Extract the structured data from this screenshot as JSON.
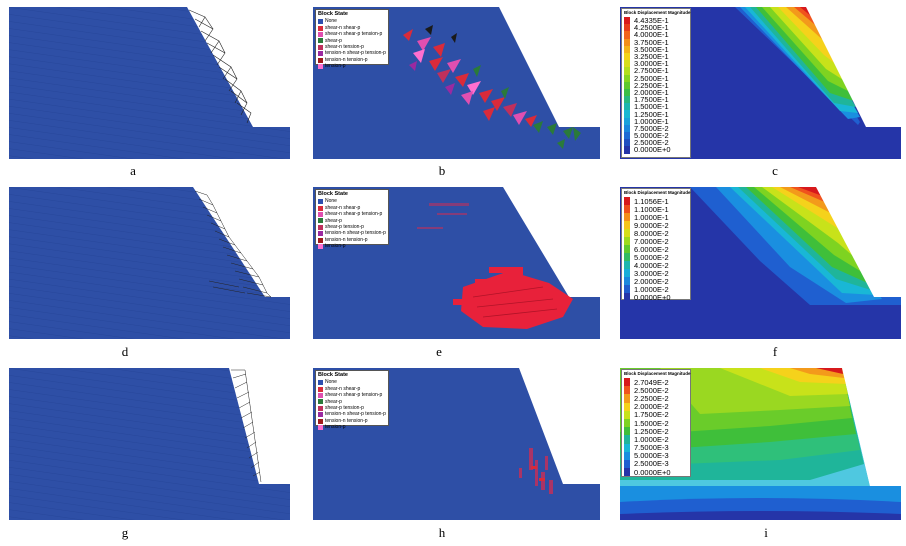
{
  "captions": [
    "a",
    "b",
    "c",
    "d",
    "e",
    "f",
    "g",
    "h",
    "i"
  ],
  "block_state_legends": {
    "b": {
      "title": "Block State",
      "items": [
        {
          "label": "None",
          "color": "#2d4fae"
        },
        {
          "label": "shear-n shear-p",
          "color": "#d92b3a"
        },
        {
          "label": "shear-n shear-p tension-p",
          "color": "#e04fb0"
        },
        {
          "label": "shear-p",
          "color": "#2a7a3a"
        },
        {
          "label": "shear-n tension-p",
          "color": "#c0305c"
        },
        {
          "label": "tension-n shear-p tension-p",
          "color": "#9b2aa0"
        },
        {
          "label": "tension-n tension-p",
          "color": "#a01c1c"
        },
        {
          "label": "tension-p",
          "color": "#ff6fcf"
        }
      ]
    },
    "e": {
      "title": "Block State",
      "items": [
        {
          "label": "None",
          "color": "#2d4fae"
        },
        {
          "label": "shear-n shear-p",
          "color": "#d92b3a"
        },
        {
          "label": "shear-n shear-p tension-p",
          "color": "#e04fb0"
        },
        {
          "label": "shear-p",
          "color": "#2a7a3a"
        },
        {
          "label": "shear-p tension-p",
          "color": "#c0305c"
        },
        {
          "label": "tension-n shear-p tension-p",
          "color": "#9b2aa0"
        },
        {
          "label": "tension-n tension-p",
          "color": "#a01c1c"
        },
        {
          "label": "tension-p",
          "color": "#ff6fcf"
        }
      ]
    },
    "h": {
      "title": "Block State",
      "items": [
        {
          "label": "None",
          "color": "#2d4fae"
        },
        {
          "label": "shear-n shear-p",
          "color": "#d92b3a"
        },
        {
          "label": "shear-n shear-p tension-p",
          "color": "#e04fb0"
        },
        {
          "label": "shear-p",
          "color": "#2a7a3a"
        },
        {
          "label": "shear-p tension-p",
          "color": "#c0305c"
        },
        {
          "label": "tension-n shear-p tension-p",
          "color": "#9b2aa0"
        },
        {
          "label": "tension-n tension-p",
          "color": "#a01c1c"
        },
        {
          "label": "tension-p",
          "color": "#ff6fcf"
        }
      ]
    }
  },
  "displacement_legends": {
    "c": {
      "title": "Block Displacement Magnitude",
      "values": [
        "4.4335E-1",
        "4.2500E-1",
        "4.0000E-1",
        "3.7500E-1",
        "3.5000E-1",
        "3.2500E-1",
        "3.0000E-1",
        "2.7500E-1",
        "2.5000E-1",
        "2.2500E-1",
        "2.0000E-1",
        "1.7500E-1",
        "1.5000E-1",
        "1.2500E-1",
        "1.0000E-1",
        "7.5000E-2",
        "5.0000E-2",
        "2.5000E-2",
        "0.0000E+0"
      ]
    },
    "f": {
      "title": "Block Displacement Magnitude",
      "values": [
        "1.1056E-1",
        "1.1000E-1",
        "1.0000E-1",
        "9.0000E-2",
        "8.0000E-2",
        "7.0000E-2",
        "6.0000E-2",
        "5.0000E-2",
        "4.0000E-2",
        "3.0000E-2",
        "2.0000E-2",
        "1.0000E-2",
        "0.0000E+0"
      ]
    },
    "i": {
      "title": "Block Displacement Magnitude",
      "values": [
        "2.7049E-2",
        "2.5000E-2",
        "2.2500E-2",
        "2.0000E-2",
        "1.7500E-2",
        "1.5000E-2",
        "1.2500E-2",
        "1.0000E-2",
        "7.5000E-3",
        "5.0000E-3",
        "2.5000E-3",
        "0.0000E+0"
      ]
    }
  },
  "colors": {
    "block_blue": "#2e4fa6",
    "rainbow": [
      "#d7191c",
      "#f0531d",
      "#f39a1b",
      "#f5d21b",
      "#c8e21a",
      "#7ed321",
      "#3fbf3a",
      "#1fb59a",
      "#19b7d6",
      "#1a8fe0",
      "#1f5fd0",
      "#2535a8"
    ]
  }
}
